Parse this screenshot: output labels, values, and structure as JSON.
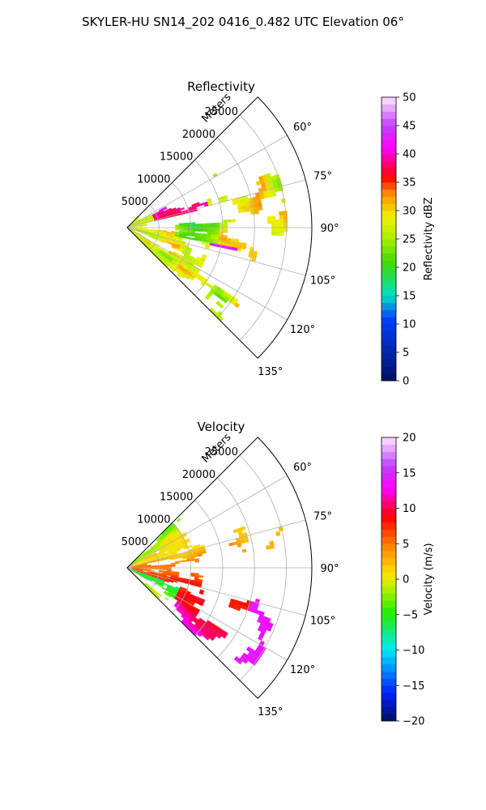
{
  "figure": {
    "suptitle": "SKYLER-HU  SN14_202  0416_0.482 UTC Elevation 06°"
  },
  "chart_data": [
    {
      "type": "heatmap",
      "projection": "polar sector",
      "title": "Reflectivity",
      "radial_label": "Meters",
      "radial_ticks": [
        5000,
        10000,
        15000,
        20000,
        25000
      ],
      "azimuth_ticks": [
        "60°",
        "75°",
        "90°",
        "105°",
        "120°",
        "135°"
      ],
      "azimuth_range_deg": [
        45,
        135
      ],
      "max_range_m": 29000,
      "colorbar": {
        "label": "Reflectivity dBZ",
        "range": [
          0,
          50
        ],
        "ticks": [
          "0",
          "5",
          "10",
          "15",
          "20",
          "25",
          "30",
          "35",
          "40",
          "45",
          "50"
        ]
      },
      "colors": {
        "low": "#001060",
        "teal": "#00e0c0",
        "green": "#44d800",
        "yellow": "#f0f000",
        "orange": "#ff8c00",
        "red": "#ff0000",
        "magenta": "#ff00ff",
        "high": "#ffe6ff"
      }
    },
    {
      "type": "heatmap",
      "projection": "polar sector",
      "title": "Velocity",
      "radial_label": "Meters",
      "radial_ticks": [
        5000,
        10000,
        15000,
        20000,
        25000
      ],
      "azimuth_ticks": [
        "60°",
        "75°",
        "90°",
        "105°",
        "120°",
        "135°"
      ],
      "azimuth_range_deg": [
        45,
        135
      ],
      "max_range_m": 29000,
      "colorbar": {
        "label": "Velocity (m/s)",
        "range": [
          -20,
          20
        ],
        "ticks": [
          "−20",
          "−15",
          "−10",
          "−5",
          "0",
          "5",
          "10",
          "15",
          "20"
        ]
      },
      "colors": {
        "low": "#001060",
        "cyan": "#00e8ff",
        "green": "#22ee00",
        "yellow": "#ffe000",
        "orange": "#ff8000",
        "red": "#ff0000",
        "magenta": "#ff00ff",
        "high": "#ffe6ff"
      }
    }
  ]
}
